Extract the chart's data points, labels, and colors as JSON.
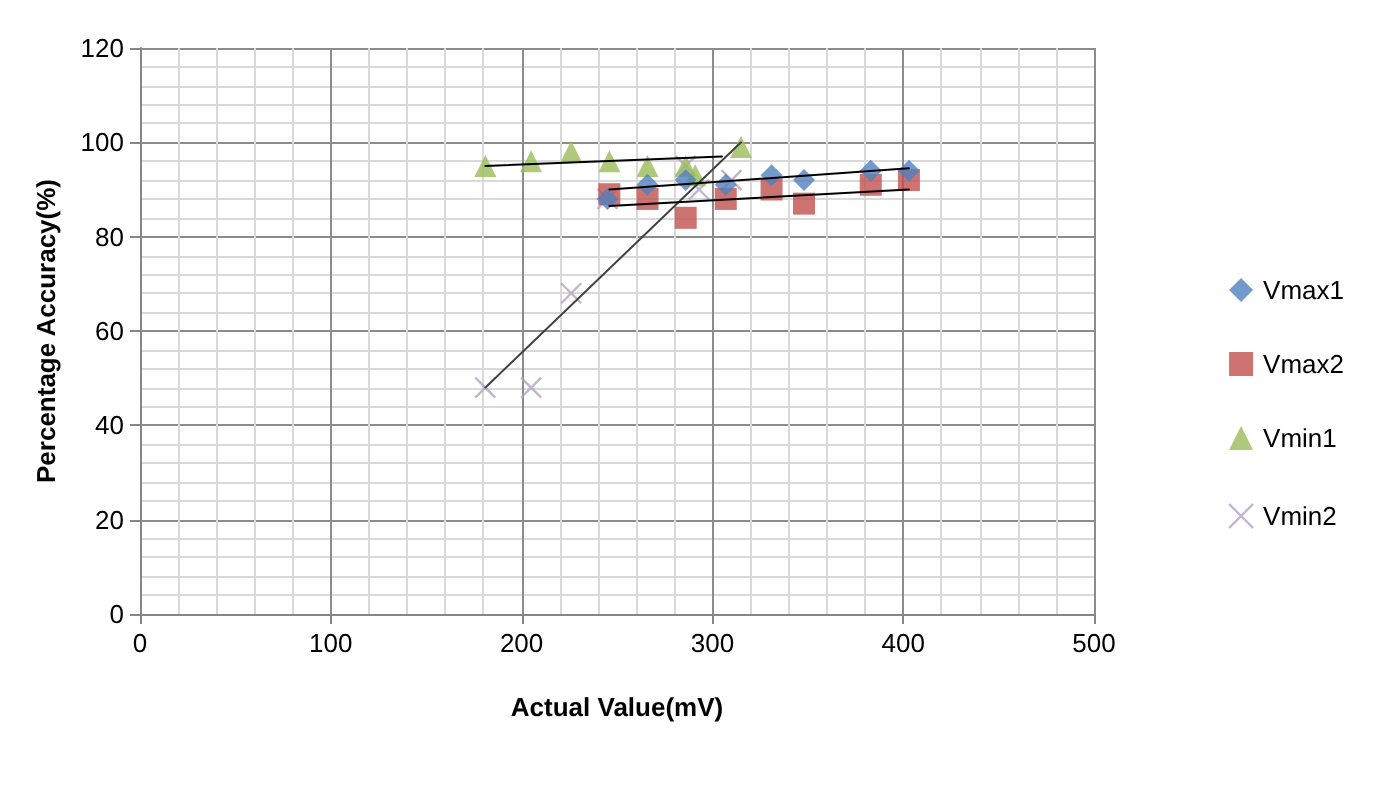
{
  "chart_data": {
    "type": "scatter",
    "xlabel": "Actual Value(mV)",
    "ylabel": "Percentage Accuracy(%)",
    "xlim": [
      0,
      500
    ],
    "xticks": [
      0,
      100,
      200,
      300,
      400,
      500
    ],
    "ylim": [
      0,
      120
    ],
    "yticks": [
      0,
      20,
      40,
      60,
      80,
      100,
      120
    ],
    "grid": true,
    "legend": "right",
    "series": [
      {
        "name": "Vmax1",
        "color": "#4f81bd",
        "marker": "diamond",
        "x": [
          245,
          266,
          286,
          307,
          331,
          348,
          383,
          403
        ],
        "values": [
          88,
          91,
          92,
          91,
          93,
          92,
          94,
          94
        ]
      },
      {
        "name": "Vmax2",
        "color": "#c0504d",
        "marker": "square",
        "x": [
          246,
          266,
          286,
          307,
          331,
          348,
          383,
          403
        ],
        "values": [
          89,
          88,
          84,
          88,
          90,
          87,
          91,
          92
        ]
      },
      {
        "name": "Vmin1",
        "color": "#9bbb59",
        "marker": "triangle",
        "x": [
          181,
          205,
          226,
          246,
          266,
          286,
          291,
          315
        ],
        "values": [
          95,
          96,
          98,
          96,
          95,
          95,
          93,
          99
        ]
      },
      {
        "name": "Vmin2",
        "color": "#b3a2c7",
        "marker": "cross",
        "x": [
          181,
          205,
          226,
          245,
          286,
          293,
          310
        ],
        "values": [
          48,
          48,
          68,
          88,
          95,
          90,
          92
        ]
      },
      {
        "type": "line",
        "color": "#000000",
        "marker": "none",
        "x": [
          246,
          403
        ],
        "values": [
          90,
          94.5
        ]
      },
      {
        "type": "line",
        "color": "#000000",
        "marker": "none",
        "x": [
          246,
          403
        ],
        "values": [
          86.5,
          90
        ]
      },
      {
        "type": "line",
        "color": "#000000",
        "marker": "none",
        "x": [
          181,
          305
        ],
        "values": [
          95,
          97
        ]
      },
      {
        "type": "line",
        "color": "#404040",
        "marker": "none",
        "x": [
          181,
          315
        ],
        "values": [
          48,
          100
        ]
      }
    ]
  }
}
